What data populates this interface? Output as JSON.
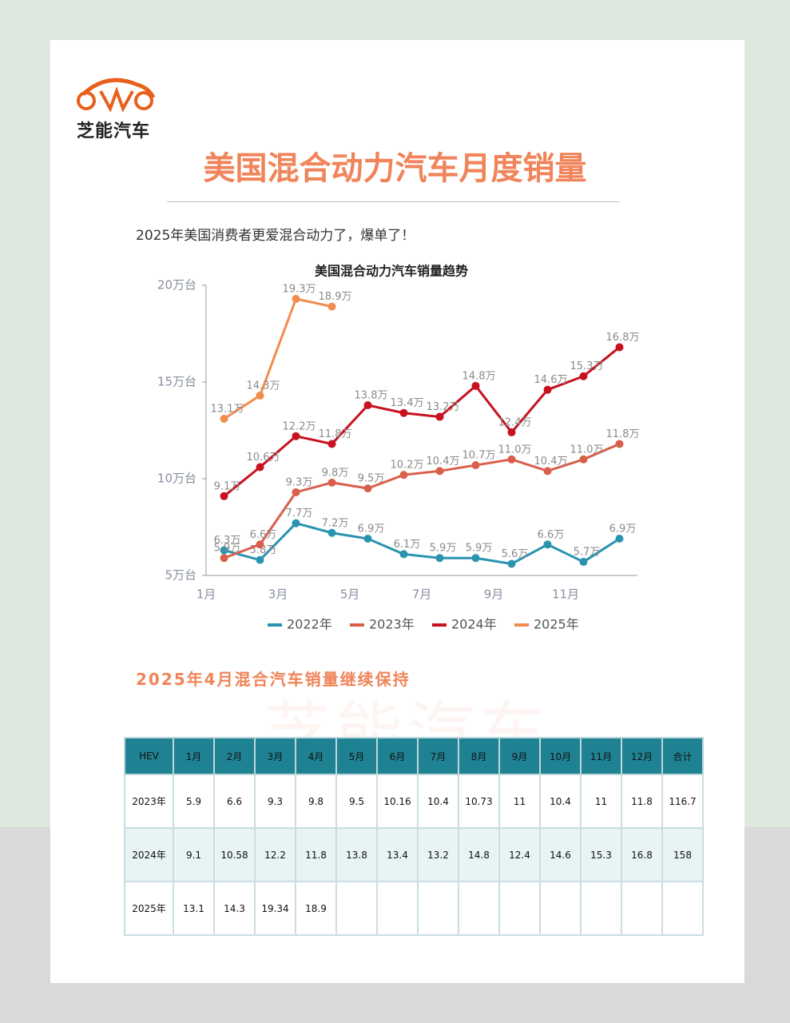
{
  "logo": {
    "text": "芝能汽车"
  },
  "header": {
    "title": "美国混合动力汽车月度销量",
    "subtitle": "2025年美国消费者更爱混合动力了，爆单了！"
  },
  "chart_data": {
    "type": "line",
    "title": "美国混合动力汽车销量趋势",
    "categories": [
      "1月",
      null,
      "3月",
      null,
      "5月",
      null,
      "7月",
      null,
      "9月",
      null,
      "11月",
      null
    ],
    "ylim": [
      5,
      20
    ],
    "yticks": [
      {
        "value": 5,
        "label": "5万台"
      },
      {
        "value": 10,
        "label": "10万台"
      },
      {
        "value": 15,
        "label": "15万台"
      },
      {
        "value": 20,
        "label": "20万台"
      }
    ],
    "legend": "bottom",
    "series": [
      {
        "name": "2022年",
        "color": "#2a93b0",
        "values": [
          6.3,
          5.8,
          7.7,
          7.2,
          6.9,
          6.1,
          5.9,
          5.9,
          5.6,
          6.6,
          5.7,
          6.9
        ],
        "value_labels": [
          "6.3万",
          "5.8万",
          "7.7万",
          "7.2万",
          "6.9万",
          "6.1万",
          "5.9万",
          "5.9万",
          "5.6万",
          "6.6万",
          "5.7万",
          "6.9万"
        ]
      },
      {
        "name": "2023年",
        "color": "#d95f4b",
        "values": [
          5.9,
          6.6,
          9.3,
          9.8,
          9.5,
          10.2,
          10.4,
          10.7,
          11.0,
          10.4,
          11.0,
          11.8
        ],
        "value_labels": [
          "5.9万",
          "6.6万",
          "9.3万",
          "9.8万",
          "9.5万",
          "10.2万",
          "10.4万",
          "10.7万",
          "11.0万",
          "10.4万",
          "11.0万",
          "11.8万"
        ]
      },
      {
        "name": "2024年",
        "color": "#c8101e",
        "values": [
          9.1,
          10.6,
          12.2,
          11.8,
          13.8,
          13.4,
          13.2,
          14.8,
          12.4,
          14.6,
          15.3,
          16.8
        ],
        "value_labels": [
          "9.1万",
          "10.6万",
          "12.2万",
          "11.8万",
          "13.8万",
          "13.4万",
          "13.2万",
          "14.8万",
          "12.4万",
          "14.6万",
          "15.3万",
          "16.8万"
        ]
      },
      {
        "name": "2025年",
        "color": "#f28c4f",
        "values": [
          13.1,
          14.3,
          19.3,
          18.9,
          null,
          null,
          null,
          null,
          null,
          null,
          null,
          null
        ],
        "value_labels": [
          "13.1万",
          "14.3万",
          "19.3万",
          "18.9万",
          null,
          null,
          null,
          null,
          null,
          null,
          null,
          null
        ]
      }
    ]
  },
  "section": {
    "title": "2025年4月混合汽车销量继续保持"
  },
  "table": {
    "header": [
      "HEV",
      "1月",
      "2月",
      "3月",
      "4月",
      "5月",
      "6月",
      "7月",
      "8月",
      "9月",
      "10月",
      "11月",
      "12月",
      "合计"
    ],
    "rows": [
      [
        "2023年",
        5.9,
        6.6,
        9.3,
        9.8,
        9.5,
        10.16,
        10.4,
        10.73,
        11,
        10.4,
        11,
        11.8,
        116.7
      ],
      [
        "2024年",
        9.1,
        10.58,
        12.2,
        11.8,
        13.8,
        13.4,
        13.2,
        14.8,
        12.4,
        14.6,
        15.3,
        16.8,
        158
      ],
      [
        "2025年",
        13.1,
        14.3,
        19.34,
        18.9
      ]
    ]
  }
}
